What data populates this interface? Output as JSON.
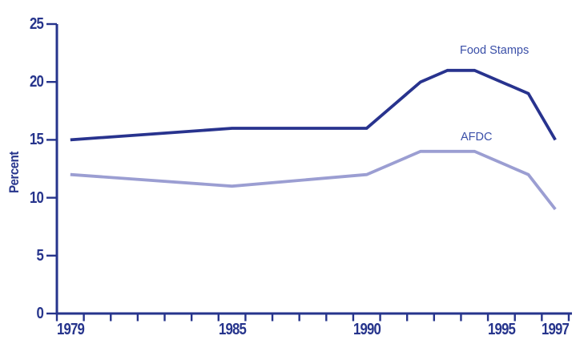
{
  "chart_data": {
    "type": "line",
    "title": "",
    "xlabel": "",
    "ylabel": "Percent",
    "ylim": [
      0,
      25
    ],
    "yticks": [
      0,
      5,
      10,
      15,
      20,
      25
    ],
    "x_start": 1979,
    "x_end": 1997,
    "xtick_label_years": [
      1979,
      1985,
      1990,
      1995,
      1997
    ],
    "grid": false,
    "legend_position": "inline-annotations-near-lines",
    "axis_color": "#26348c",
    "tick_label_color": "#26348c",
    "annotation_color": "#3a4fa8",
    "background_color": "#ffffff",
    "series": [
      {
        "name": "Food Stamps",
        "color": "#28338e",
        "points": [
          [
            1979,
            15
          ],
          [
            1985,
            16
          ],
          [
            1990,
            16
          ],
          [
            1992,
            20
          ],
          [
            1993,
            21
          ],
          [
            1994,
            21
          ],
          [
            1996,
            19
          ],
          [
            1997,
            15
          ]
        ]
      },
      {
        "name": "AFDC",
        "color": "#9b9ed2",
        "points": [
          [
            1979,
            12
          ],
          [
            1985,
            11
          ],
          [
            1990,
            12
          ],
          [
            1992,
            14
          ],
          [
            1994,
            14
          ],
          [
            1996,
            12
          ],
          [
            1997,
            9
          ]
        ]
      }
    ]
  }
}
